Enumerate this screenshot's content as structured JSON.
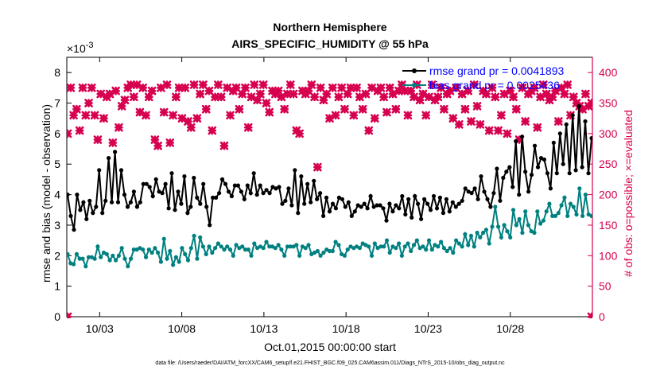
{
  "chart_data": {
    "type": "line",
    "title": "Northern Hemisphere",
    "subtitle": "AIRS_SPECIFIC_HUMIDITY @ 55 hPa",
    "xlabel": "Oct.01,2015 00:00:00 start",
    "ylabel_left": "rmse and bias (model - observation)",
    "ylabel_right": "# of obs: o=possible; ×=evaluated",
    "exponent_label": "×10",
    "exponent_power": "-3",
    "footer": "data file: /Users/raeder/DAI/ATM_forcXX/CAM6_setup/f.e21.FHIST_BGC.f09_025.CAM6assim.011/Diags_NTrS_2015-10/obs_diag_output.nc",
    "xlim": [
      1.0,
      33.0
    ],
    "ylim_left": [
      0,
      8.5
    ],
    "ylim_right": [
      0,
      425
    ],
    "x_ticks": [
      3,
      8,
      13,
      18,
      23,
      28
    ],
    "x_tick_labels": [
      "10/03",
      "10/08",
      "10/13",
      "10/18",
      "10/23",
      "10/28"
    ],
    "y_ticks_left": [
      0,
      1,
      2,
      3,
      4,
      5,
      6,
      7,
      8
    ],
    "y_tick_labels_left": [
      "0",
      "1",
      "2",
      "3",
      "4",
      "5",
      "6",
      "7",
      "8"
    ],
    "y_ticks_right": [
      0,
      50,
      100,
      150,
      200,
      250,
      300,
      350,
      400
    ],
    "y_tick_labels_right": [
      "0",
      "50",
      "100",
      "150",
      "200",
      "250",
      "300",
      "350",
      "400"
    ],
    "colors": {
      "rmse": "#000000",
      "bias": "#008080",
      "obs": "#d6004f",
      "legend_text": "#0000ff",
      "right_axis": "#d6004f"
    },
    "series": [
      {
        "name": "rmse grand pr = 0.0041893",
        "axis": "left",
        "values": [
          4.0,
          3.3,
          2.85,
          4.0,
          3.5,
          3.75,
          3.2,
          3.8,
          3.4,
          3.6,
          4.8,
          3.4,
          3.8,
          5.2,
          3.75,
          5.4,
          3.75,
          4.8,
          4.0,
          3.6,
          3.75,
          4.1,
          3.6,
          3.75,
          4.35,
          4.35,
          4.25,
          3.95,
          4.5,
          4.1,
          4.05,
          4.35,
          3.55,
          4.7,
          3.5,
          4.1,
          3.7,
          4.6,
          3.4,
          3.6,
          4.55,
          3.9,
          3.7,
          4.35,
          3.6,
          3.0,
          3.9,
          3.9,
          4.05,
          4.5,
          4.35,
          4.1,
          3.95,
          4.3,
          4.3,
          4.1,
          3.85,
          4.3,
          4.05,
          4.7,
          4.0,
          4.3,
          4.05,
          4.15,
          4.05,
          4.25,
          4.2,
          4.25,
          3.7,
          3.8,
          4.2,
          3.65,
          4.8,
          3.4,
          4.6,
          3.7,
          4.35,
          3.75,
          4.45,
          3.85,
          4.05,
          3.3,
          3.9,
          3.45,
          3.7,
          3.55,
          3.9,
          3.85,
          3.6,
          3.75,
          3.3,
          3.45,
          3.65,
          3.6,
          3.7,
          3.55,
          3.95,
          3.6,
          3.65,
          3.65,
          3.55,
          3.15,
          3.7,
          3.45,
          3.65,
          3.55,
          3.95,
          3.35,
          3.85,
          3.25,
          3.95,
          3.7,
          3.2,
          3.85,
          3.7,
          3.5,
          3.95,
          3.55,
          3.9,
          3.4,
          3.85,
          3.45,
          3.75,
          3.6,
          3.7,
          3.8,
          4.2,
          4.1,
          4.05,
          4.2,
          3.85,
          4.6,
          4.1,
          3.85,
          3.6,
          4.05,
          4.85,
          3.8,
          4.55,
          4.75,
          4.9,
          4.25,
          5.75,
          4.0,
          5.9,
          4.75,
          4.1,
          4.65,
          5.6,
          4.9,
          5.2,
          5.15,
          4.7,
          4.2,
          5.7,
          4.7,
          6.0,
          5.0,
          6.3,
          4.7,
          6.6,
          4.8,
          6.9,
          4.9,
          6.4,
          4.7,
          5.85
        ]
      },
      {
        "name": "bias grand pr = 0.0025436",
        "axis": "left",
        "values": [
          2.05,
          1.75,
          1.72,
          2.05,
          1.9,
          1.9,
          1.65,
          1.95,
          1.95,
          1.9,
          2.3,
          1.95,
          2.1,
          2.05,
          1.85,
          2.0,
          1.85,
          2.0,
          2.25,
          1.9,
          1.65,
          1.9,
          2.2,
          2.2,
          2.25,
          2.2,
          1.95,
          2.2,
          2.1,
          2.25,
          2.1,
          1.8,
          2.55,
          1.9,
          2.15,
          1.7,
          1.95,
          1.8,
          2.25,
          2.05,
          1.85,
          2.25,
          2.65,
          1.9,
          2.6,
          2.3,
          2.05,
          2.3,
          2.1,
          2.25,
          2.4,
          2.3,
          2.2,
          2.3,
          2.2,
          2.0,
          2.35,
          2.25,
          2.3,
          2.2,
          2.2,
          2.0,
          2.4,
          2.25,
          2.3,
          2.25,
          2.45,
          2.3,
          2.3,
          2.25,
          2.35,
          2.2,
          2.0,
          2.3,
          2.3,
          2.3,
          2.35,
          2.0,
          2.3,
          2.25,
          2.35,
          2.05,
          2.1,
          2.15,
          2.0,
          2.1,
          2.2,
          2.15,
          2.15,
          2.45,
          2.35,
          2.05,
          2.0,
          2.2,
          2.3,
          2.25,
          2.3,
          2.25,
          2.4,
          2.35,
          2.3,
          2.0,
          2.4,
          2.25,
          2.3,
          2.3,
          2.5,
          2.1,
          2.3,
          2.25,
          2.4,
          2.0,
          2.3,
          2.4,
          2.15,
          2.35,
          2.5,
          2.25,
          2.3,
          2.2,
          2.5,
          2.2,
          2.35,
          2.3,
          2.45,
          2.25,
          2.15,
          2.25,
          2.1,
          2.5,
          2.4,
          2.3,
          2.7,
          2.35,
          2.65,
          2.3,
          2.75,
          2.6,
          2.75,
          2.85,
          2.4,
          2.95,
          3.6,
          2.95,
          2.6,
          3.0,
          2.8,
          2.6,
          3.5,
          3.0,
          3.2,
          2.75,
          3.45,
          3.0,
          2.8,
          2.75,
          3.45,
          3.05,
          3.15,
          3.45,
          3.7,
          3.3,
          3.3,
          3.4,
          3.65,
          3.9,
          3.3,
          3.7,
          3.6,
          3.35,
          4.2,
          3.3,
          4.0,
          3.35,
          3.3
        ]
      },
      {
        "name": "obs evaluated",
        "axis": "right",
        "marker": "x",
        "values": [
          300,
          375,
          330,
          340,
          305,
          375,
          330,
          350,
          375,
          330,
          290,
          365,
          325,
          360,
          365,
          285,
          370,
          310,
          345,
          355,
          375,
          380,
          360,
          380,
          335,
          375,
          330,
          360,
          370,
          290,
          280,
          375,
          335,
          380,
          285,
          330,
          360,
          375,
          325,
          375,
          320,
          310,
          380,
          325,
          365,
          380,
          340,
          370,
          305,
          360,
          380,
          360,
          280,
          375,
          330,
          370,
          375,
          340,
          365,
          375,
          310,
          360,
          380,
          355,
          365,
          380,
          350,
          335,
          370,
          365,
          370,
          360,
          340,
          365,
          380,
          365,
          305,
          300,
          370,
          365,
          370,
          380,
          360,
          245,
          375,
          355,
          365,
          325,
          375,
          330,
          360,
          375,
          340,
          365,
          375,
          330,
          375,
          360,
          340,
          365,
          305,
          375,
          325,
          370,
          375,
          360,
          335,
          375,
          365,
          340,
          370,
          380,
          370,
          330,
          370,
          360,
          380,
          355,
          365,
          330,
          360,
          380,
          355,
          360,
          375,
          340,
          365,
          370,
          325,
          375,
          315,
          365,
          340,
          370,
          320,
          380,
          345,
          315,
          370,
          365,
          305,
          375,
          360,
          305,
          330,
          365,
          300,
          370,
          360,
          340,
          290,
          375,
          320,
          365,
          370,
          375,
          310,
          360,
          380,
          365,
          355,
          360,
          370,
          320,
          375,
          365,
          380,
          330,
          360,
          350,
          345,
          340,
          365,
          345,
          350
        ]
      }
    ]
  }
}
